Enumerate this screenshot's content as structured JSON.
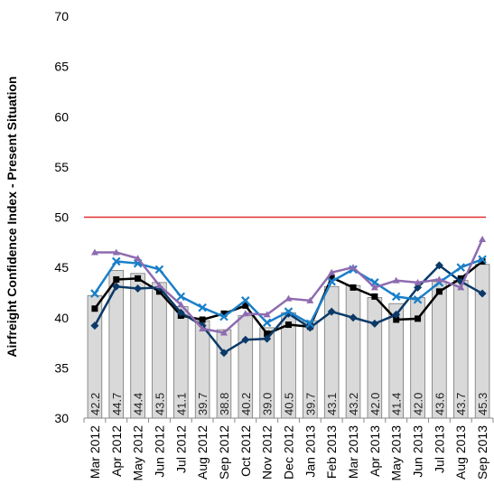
{
  "chart_data": {
    "type": "bar",
    "y_label": "Airfreight Confidence Index - Present Situation",
    "categories": [
      "Mar 2012",
      "Apr 2012",
      "May 2012",
      "Jun 2012",
      "Jul 2012",
      "Aug 2012",
      "Sep 2012",
      "Oct 2012",
      "Nov 2012",
      "Dec 2012",
      "Jan 2013",
      "Feb 2013",
      "Mar 2013",
      "Apr 2013",
      "May 2013",
      "Jun 2013",
      "Jul 2013",
      "Aug 2013",
      "Sep 2013"
    ],
    "series": [
      {
        "type": "bar",
        "color": "#d9d9d9",
        "values": [
          42.2,
          44.7,
          44.4,
          43.5,
          41.1,
          39.7,
          38.8,
          40.2,
          39.0,
          40.5,
          39.7,
          43.1,
          43.2,
          42.0,
          41.4,
          42.0,
          43.6,
          43.7,
          45.3
        ],
        "value_labels": [
          "42.2",
          "44.7",
          "44.4",
          "43.5",
          "41.1",
          "39.7",
          "38.8",
          "40.2",
          "39.0",
          "40.5",
          "39.7",
          "43.1",
          "43.2",
          "42.0",
          "41.4",
          "42.0",
          "43.6",
          "43.7",
          "45.3"
        ]
      },
      {
        "type": "line",
        "color": "#000000",
        "marker": "square",
        "values": [
          40.9,
          43.8,
          43.9,
          42.6,
          40.2,
          39.8,
          40.4,
          41.2,
          38.4,
          39.3,
          39.1,
          44.0,
          43.0,
          42.1,
          39.8,
          39.9,
          42.6,
          43.9,
          45.6
        ]
      },
      {
        "type": "line",
        "color": "#0b3a68",
        "marker": "diamond",
        "values": [
          39.2,
          43.1,
          42.9,
          43.0,
          40.5,
          39.2,
          36.5,
          37.8,
          37.9,
          40.4,
          39.0,
          40.6,
          40.0,
          39.4,
          40.3,
          43.0,
          45.2,
          43.6,
          42.4
        ]
      },
      {
        "type": "line",
        "color": "#1a7fc8",
        "marker": "x",
        "values": [
          42.4,
          45.6,
          45.4,
          44.8,
          42.1,
          41.0,
          40.1,
          41.7,
          39.5,
          40.6,
          39.4,
          43.6,
          44.8,
          43.5,
          42.1,
          41.8,
          43.5,
          45.0,
          45.8
        ]
      },
      {
        "type": "line",
        "color": "#8e6bb0",
        "marker": "triangle",
        "values": [
          46.5,
          46.5,
          45.9,
          43.2,
          41.3,
          38.9,
          38.5,
          40.4,
          40.3,
          41.9,
          41.7,
          44.5,
          45.0,
          43.0,
          43.7,
          43.5,
          43.8,
          43.0,
          47.8
        ]
      }
    ],
    "reference_line": {
      "value": 50,
      "color": "#e03030"
    },
    "ylim": [
      30,
      70
    ],
    "yticks": [
      30,
      35,
      40,
      45,
      50,
      55,
      60,
      65,
      70
    ]
  }
}
